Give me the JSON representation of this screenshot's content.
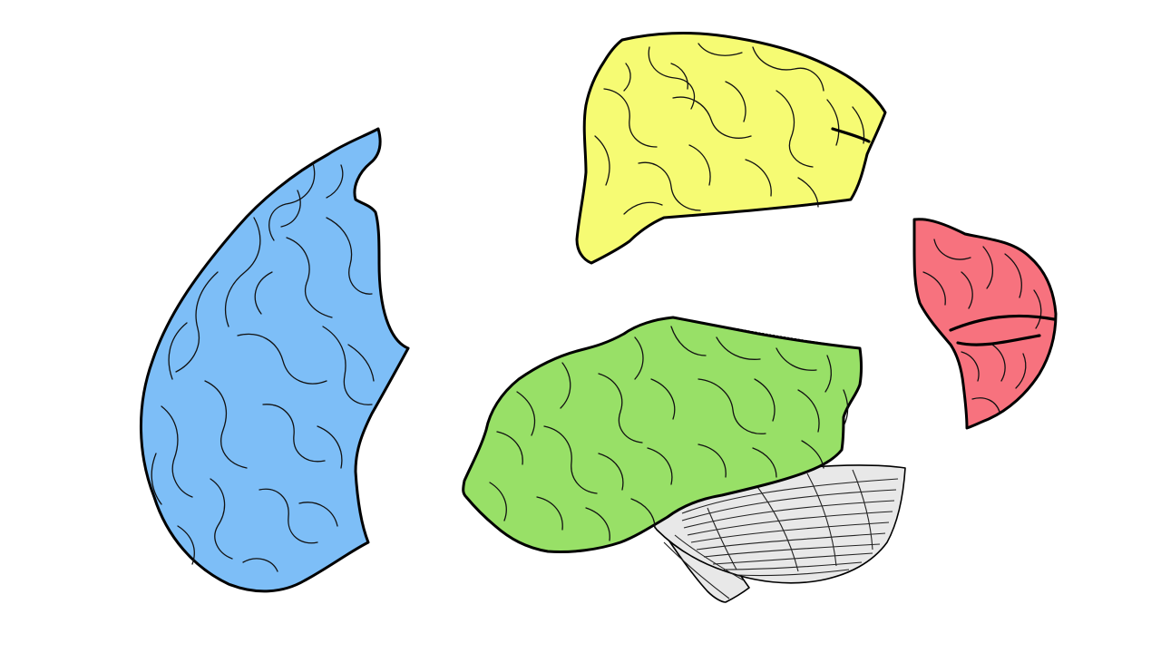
{
  "figure": {
    "background": "#ffffff",
    "lobes": [
      {
        "id": "blue-lobe",
        "color": "#7dbef7"
      },
      {
        "id": "yellow-lobe",
        "color": "#f6fb73"
      },
      {
        "id": "green-lobe",
        "color": "#98e067"
      },
      {
        "id": "red-lobe",
        "color": "#f7727e"
      },
      {
        "id": "cerebellum-brainstem",
        "color": "#e8e8e8"
      }
    ]
  }
}
